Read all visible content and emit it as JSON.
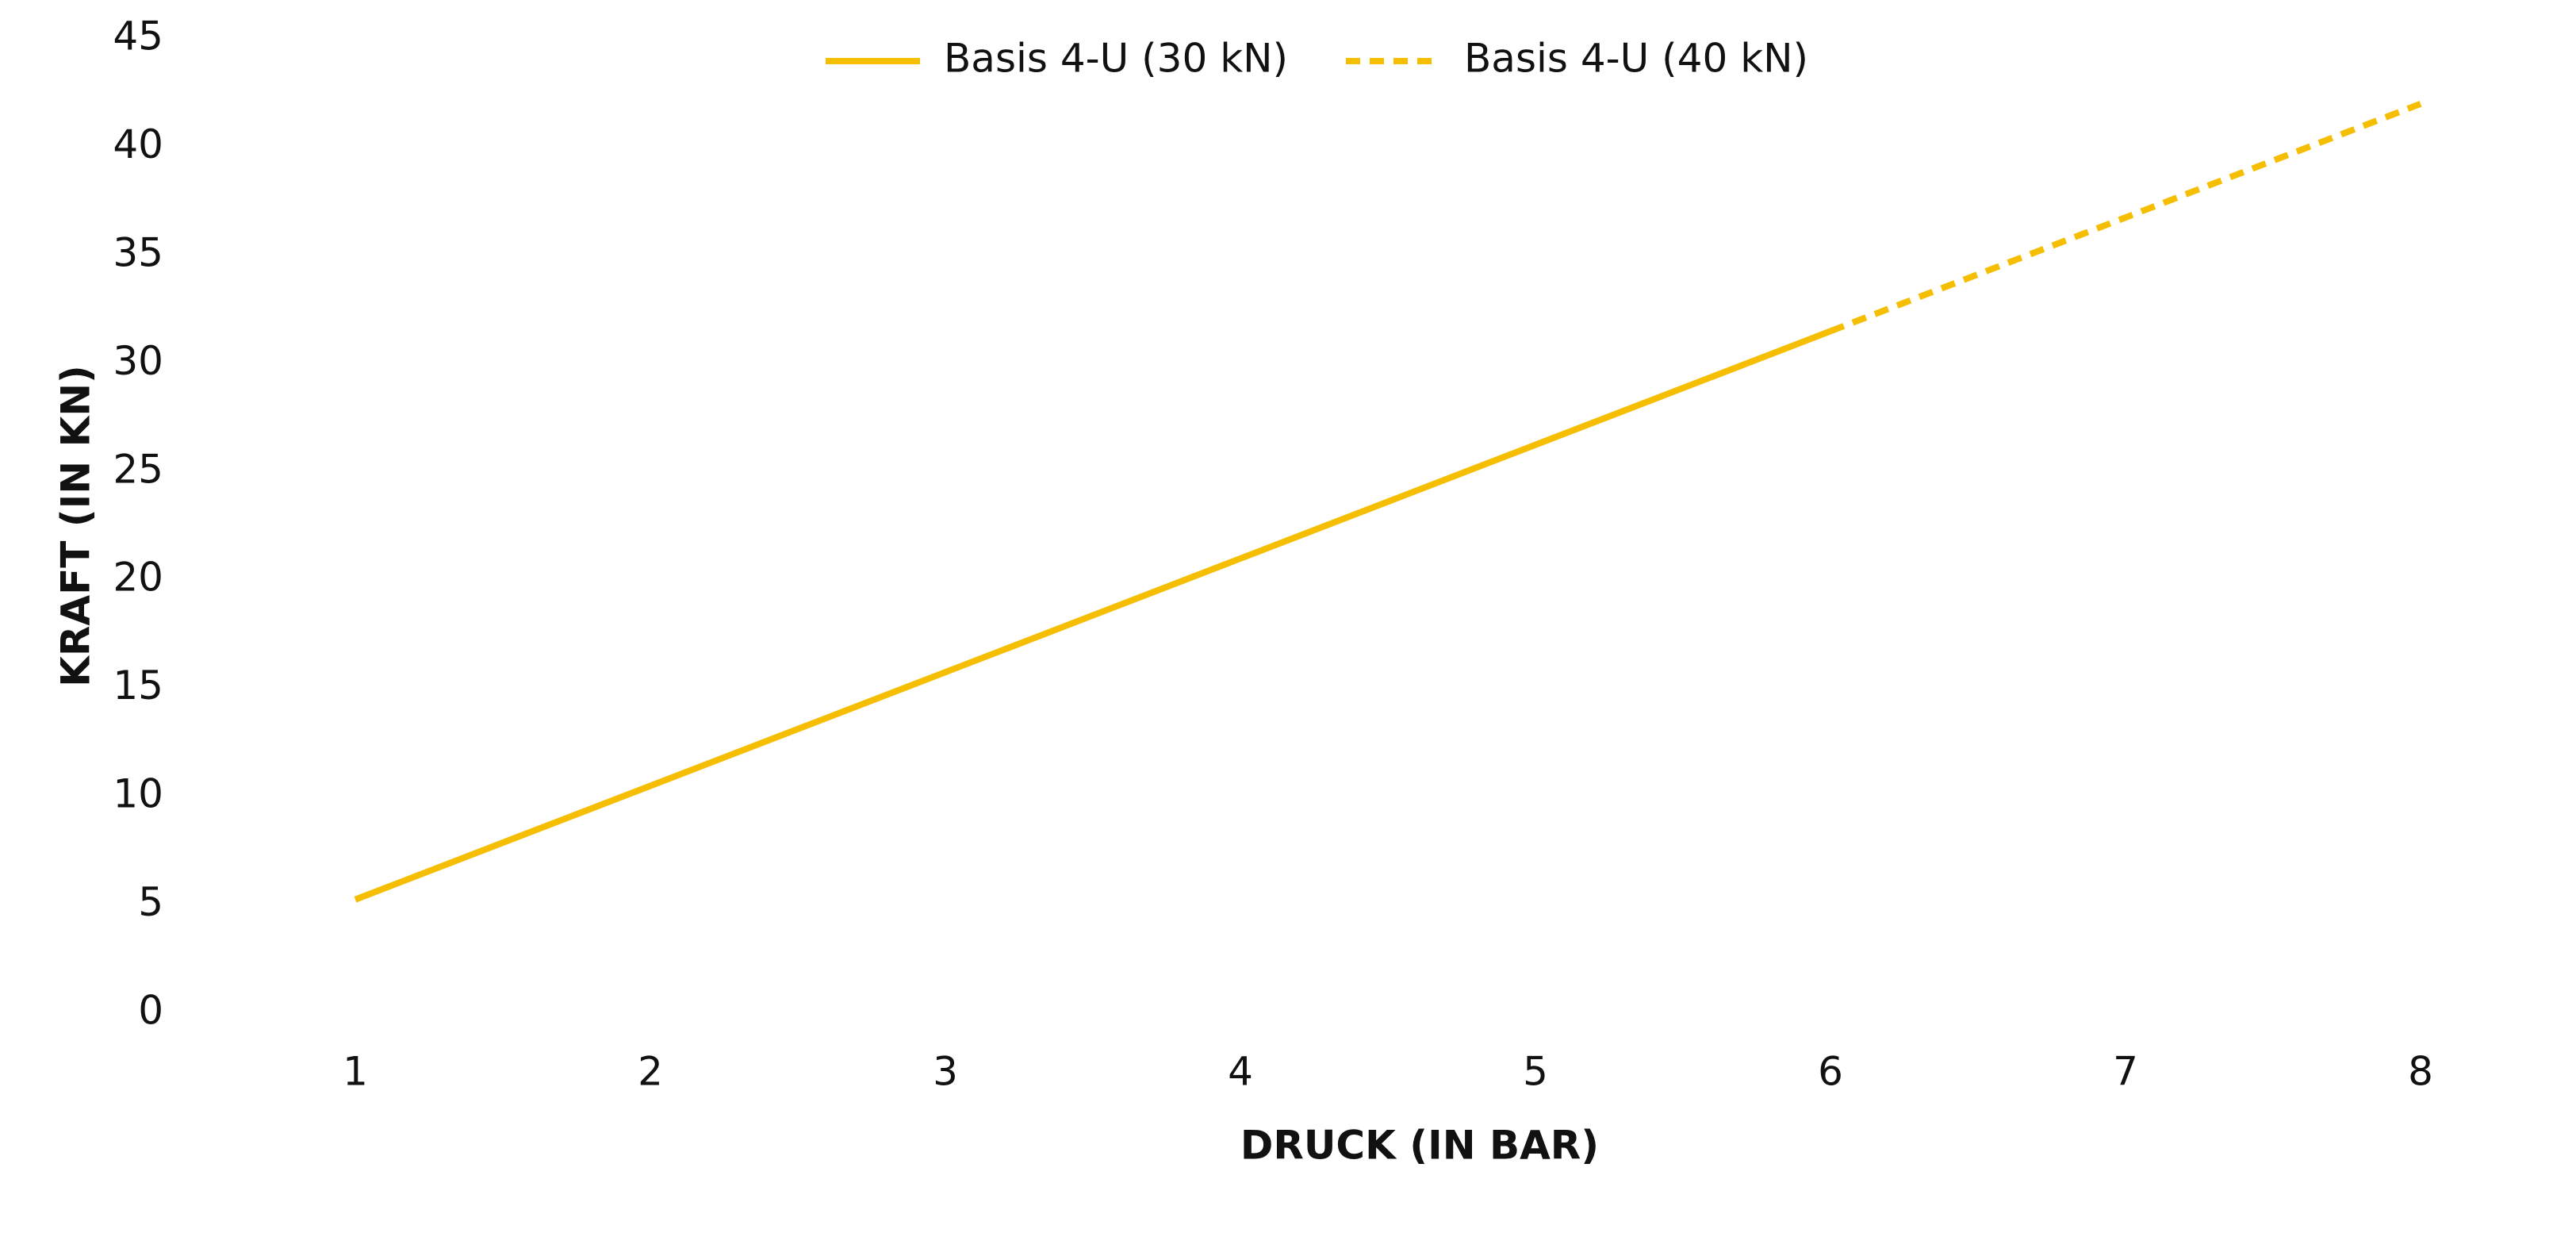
{
  "chart_data": {
    "type": "line",
    "x_label": "DRUCK (IN BAR)",
    "y_label": "KRAFT (IN KN)",
    "x": [
      1,
      2,
      3,
      4,
      5,
      6,
      7,
      8
    ],
    "xlim": [
      0.5,
      8.5
    ],
    "xticks": [
      1,
      2,
      3,
      4,
      5,
      6,
      7,
      8
    ],
    "ylim": [
      0,
      45
    ],
    "yticks": [
      0,
      5,
      10,
      15,
      20,
      25,
      30,
      35,
      40,
      45
    ],
    "grid": false,
    "legend": "top",
    "series": [
      {
        "name": "Basis 4-U (30 kN)",
        "color": "#f6be00",
        "style": "solid",
        "values": [
          5.25,
          10.5,
          15.75,
          21,
          26.25,
          31.5,
          null,
          null
        ]
      },
      {
        "name": "Basis 4-U (40 kN)",
        "color": "#f6be00",
        "style": "dashed",
        "values": [
          null,
          null,
          null,
          null,
          null,
          31.5,
          36.75,
          42
        ]
      }
    ]
  }
}
